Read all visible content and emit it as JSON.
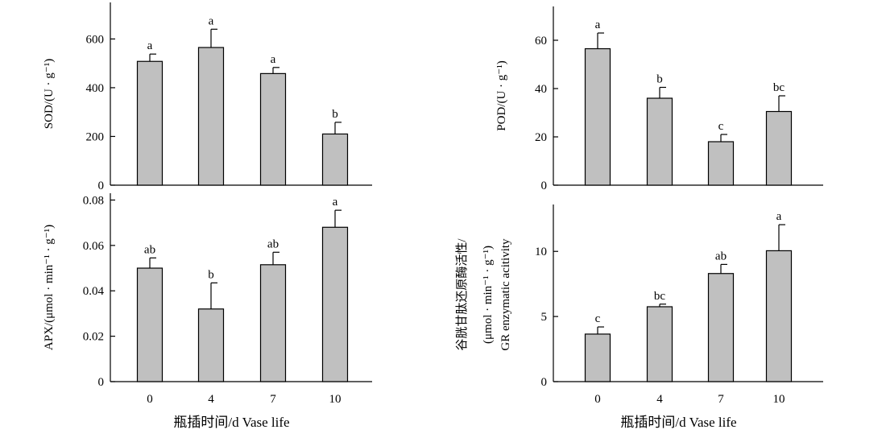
{
  "chart_data": [
    {
      "type": "bar",
      "id": "sod",
      "categories": [
        "0",
        "4",
        "7",
        "10"
      ],
      "values": [
        508,
        565,
        458,
        210
      ],
      "errors": [
        30,
        75,
        25,
        48
      ],
      "significance": [
        "a",
        "a",
        "a",
        "b"
      ],
      "ylabel": "SOD/(U · g⁻¹)",
      "ylim": [
        0,
        750
      ],
      "yticks": [
        "0",
        "200",
        "400",
        "600"
      ],
      "ytick_values": [
        0,
        200,
        400,
        600
      ],
      "xlabel": "",
      "bar_color": "#c0c0c0"
    },
    {
      "type": "bar",
      "id": "pod",
      "categories": [
        "0",
        "4",
        "7",
        "10"
      ],
      "values": [
        56.5,
        36.0,
        18.0,
        30.5
      ],
      "errors": [
        6.5,
        4.5,
        3.0,
        6.5
      ],
      "significance": [
        "a",
        "b",
        "c",
        "bc"
      ],
      "ylabel": "POD/(U · g⁻¹)",
      "ylim": [
        0,
        74
      ],
      "yticks": [
        "0",
        "20",
        "40",
        "60"
      ],
      "ytick_values": [
        0,
        20,
        40,
        60
      ],
      "xlabel": "",
      "bar_color": "#c0c0c0"
    },
    {
      "type": "bar",
      "id": "apx",
      "categories": [
        "0",
        "4",
        "7",
        "10"
      ],
      "values": [
        0.05,
        0.032,
        0.0515,
        0.068
      ],
      "errors": [
        0.0045,
        0.0115,
        0.0055,
        0.0075
      ],
      "significance": [
        "ab",
        "b",
        "ab",
        "a"
      ],
      "ylabel": "APX/(μmol · min⁻¹ · g⁻¹)",
      "ylim": [
        0,
        0.083
      ],
      "yticks": [
        "0",
        "0.02",
        "0.04",
        "0.06",
        "0.08"
      ],
      "ytick_values": [
        0,
        0.02,
        0.04,
        0.06,
        0.08
      ],
      "xlabel": "瓶插时间/d    Vase life",
      "bar_color": "#c0c0c0"
    },
    {
      "type": "bar",
      "id": "gr",
      "categories": [
        "0",
        "4",
        "7",
        "10"
      ],
      "values": [
        3.65,
        5.75,
        8.3,
        10.05
      ],
      "errors": [
        0.55,
        0.2,
        0.7,
        2.0
      ],
      "significance": [
        "c",
        "bc",
        "ab",
        "a"
      ],
      "ylabel_lines": [
        "谷胱甘肽还原酶活性/",
        "(μmol · min⁻¹ · g⁻¹)",
        "GR enzymatic acitivity"
      ],
      "ylim": [
        0,
        13.6
      ],
      "yticks": [
        "0",
        "5",
        "10"
      ],
      "ytick_values": [
        0,
        5,
        10
      ],
      "xlabel": "瓶插时间/d    Vase life",
      "bar_color": "#c0c0c0"
    }
  ]
}
